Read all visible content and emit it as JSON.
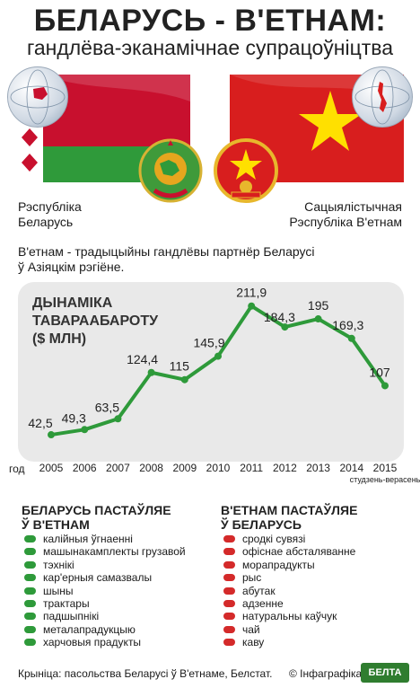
{
  "header": {
    "title": "БЕЛАРУСЬ - В'ЕТНАМ:",
    "subtitle": "гандлёва-эканамічнае супрацоўніцтва"
  },
  "countries": {
    "left": {
      "line1": "Рэспубліка",
      "line2": "Беларусь"
    },
    "right": {
      "line1": "Сацыялістычная",
      "line2": "Рэспубліка В'етнам"
    }
  },
  "intro": {
    "line1": "В'етнам - традыцыйны гандлёвы партнёр Беларусі",
    "line2": "ў Азіяцкім рэгіёне."
  },
  "colors": {
    "series": "#2e9a3a",
    "by_red": "#c8102e",
    "by_green": "#2f9a3a",
    "vn_red": "#d81e1e",
    "vn_star": "#ffe000",
    "exports_by": "#2e9a3a",
    "exports_vn": "#d42a2a",
    "panel": "#e9e9e9"
  },
  "chart_data": {
    "type": "line",
    "title_line1": "ДЫНАМІКА",
    "title_line2": "ТАВАРААБАРОТУ",
    "title_line3": "($ МЛН)",
    "xlabel": "год",
    "categories": [
      "2005",
      "2006",
      "2007",
      "2008",
      "2009",
      "2010",
      "2011",
      "2012",
      "2013",
      "2014",
      "2015"
    ],
    "category_note": "студзень-верасень",
    "series": [
      {
        "values": [
          42.5,
          49.3,
          63.5,
          124.4,
          115,
          145.9,
          211.9,
          184.3,
          195,
          169.3,
          107
        ]
      }
    ],
    "value_labels": [
      "42,5",
      "49,3",
      "63,5",
      "124,4",
      "115",
      "145,9",
      "211,9",
      "184,3",
      "195",
      "169,3",
      "107"
    ],
    "ylim": [
      0,
      230
    ],
    "grid": false
  },
  "exports": {
    "by_heading_line1": "БЕЛАРУСЬ ПАСТАЎЛЯЕ",
    "by_heading_line2": "Ў В'ЕТНАМ",
    "by_items": [
      "калійныя ўгнаенні",
      "машынакамплекты грузавой",
      "тэхнікі",
      "кар'ерныя самазвалы",
      "шыны",
      "трактары",
      "падшыпнікі",
      "металапрадукцыю",
      "харчовыя прадукты"
    ],
    "vn_heading_line1": "В'ЕТНАМ ПАСТАЎЛЯЕ",
    "vn_heading_line2": "Ў БЕЛАРУСЬ",
    "vn_items": [
      "сродкі сувязі",
      "офіснае абсталяванне",
      "морапрадукты",
      "рыс",
      "абутак",
      "адзенне",
      "натуральны каўчук",
      "чай",
      "каву"
    ]
  },
  "footer": {
    "source": "Крыніца: пасольства Беларусі ў В'етнаме, Белстат.",
    "copyright": "© Інфаграфіка",
    "logo": "БЕЛТА"
  }
}
